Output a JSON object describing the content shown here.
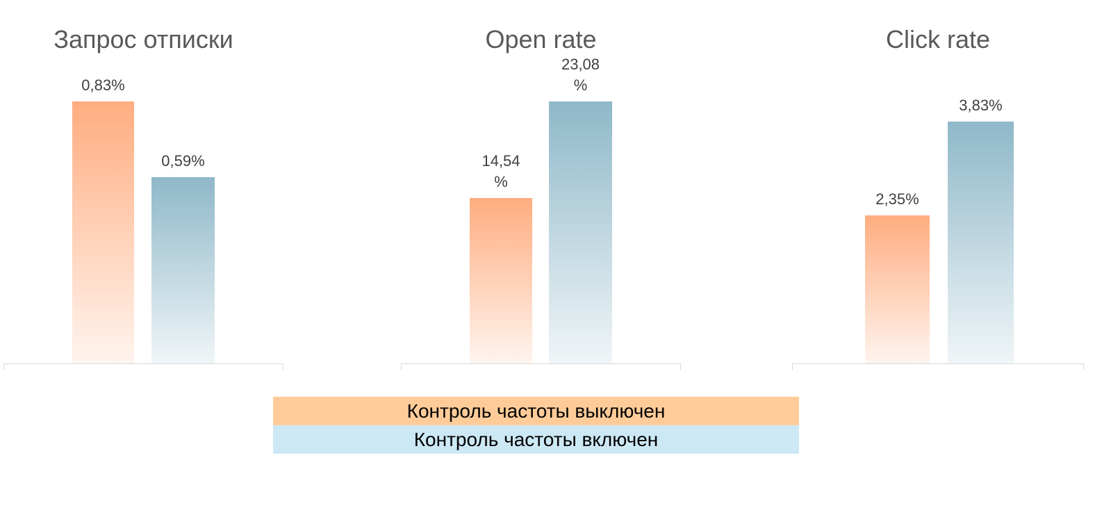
{
  "chart_data": [
    {
      "type": "bar",
      "title": "Запрос отписки",
      "values": [
        0.83,
        0.59
      ],
      "value_labels": [
        "0,83%",
        "0,59%"
      ],
      "ylim": [
        0,
        0.83
      ]
    },
    {
      "type": "bar",
      "title": "Open rate",
      "values": [
        14.54,
        23.08
      ],
      "value_labels": [
        "14,54%",
        "23,08%"
      ],
      "ylim": [
        0,
        23.08
      ]
    },
    {
      "type": "bar",
      "title": "Click rate",
      "values": [
        2.35,
        3.83
      ],
      "value_labels": [
        "2,35%",
        "3,83%"
      ],
      "ylim": [
        0,
        4.15
      ]
    }
  ],
  "legend": {
    "items": [
      {
        "label": "Контроль частоты выключен",
        "color": "#ffcc99",
        "bar_color": "#ffad80"
      },
      {
        "label": "Контроль частоты включен",
        "color": "#cce8f4",
        "bar_color": "#8fb8c9"
      }
    ]
  }
}
